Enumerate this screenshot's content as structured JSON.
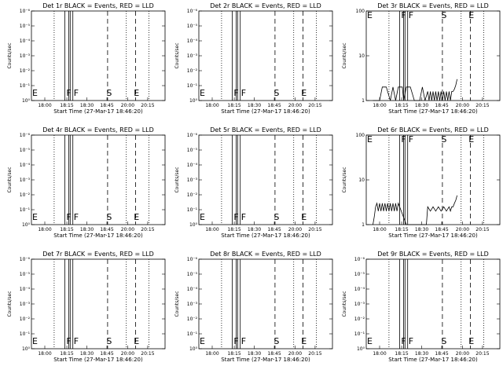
{
  "chart_data": [
    {
      "type": "line",
      "title": "Det 1r BLACK = Events, RED = LLD",
      "xlabel": "Start Time (27-Mar-17 18:46:20)",
      "ylabel": "Counts/sec",
      "yscale": "log",
      "y_tick_labels": [
        "10⁰",
        "10⁻¹",
        "10⁻²",
        "10⁻³",
        "10⁻⁴",
        "10⁻⁵",
        "10⁻⁶"
      ],
      "x_tick_labels": [
        "18:00",
        "18:15",
        "18:30",
        "18:45",
        "20:00",
        "20:15"
      ],
      "markers": [
        "E",
        "F",
        "F",
        "S",
        "E"
      ],
      "series": []
    },
    {
      "type": "line",
      "title": "Det 2r BLACK = Events, RED = LLD",
      "xlabel": "Start Time (27-Mar-17 18:46:20)",
      "ylabel": "Counts/sec",
      "yscale": "log",
      "y_tick_labels": [
        "10⁰",
        "10⁻¹",
        "10⁻²",
        "10⁻³",
        "10⁻⁴",
        "10⁻⁵",
        "10⁻⁶"
      ],
      "x_tick_labels": [
        "18:00",
        "18:15",
        "18:30",
        "18:45",
        "20:00",
        "20:15"
      ],
      "markers": [
        "E",
        "F",
        "F",
        "S",
        "E"
      ],
      "series": []
    },
    {
      "type": "line",
      "title": "Det 3r BLACK = Events, RED = LLD",
      "xlabel": "Start Time (27-Mar-17 18:46:20)",
      "ylabel": "Counts/sec",
      "yscale": "log",
      "y_tick_labels": [
        "1",
        "10",
        "100"
      ],
      "x_tick_labels": [
        "18:00",
        "18:15",
        "18:30",
        "18:45",
        "20:00",
        "20:15"
      ],
      "markers": [
        "E",
        "F",
        "F",
        "S",
        "E"
      ],
      "series": [
        {
          "x": [
            0.05,
            0.08,
            0.1,
            0.12,
            0.15,
            0.18,
            0.2,
            0.22,
            0.24,
            0.27,
            0.28,
            0.3,
            0.33,
            0.36,
            0.4,
            0.42,
            0.44,
            0.46,
            0.47,
            0.48,
            0.49,
            0.5,
            0.51,
            0.52,
            0.53,
            0.54,
            0.55,
            0.56,
            0.57,
            0.58,
            0.59,
            0.6,
            0.61,
            0.62,
            0.63,
            0.64,
            0.65,
            0.66,
            0.67,
            0.68
          ],
          "y": [
            1,
            1,
            1,
            2,
            2,
            1,
            2,
            1,
            2,
            2,
            1,
            2,
            2,
            1,
            1,
            2,
            1,
            1.6,
            1,
            1.6,
            1,
            1.6,
            1,
            1.6,
            1,
            1.6,
            1,
            1.6,
            1,
            1.6,
            1,
            1.6,
            1,
            1.6,
            1,
            1.6,
            1.6,
            1.8,
            2.2,
            3
          ]
        }
      ]
    },
    {
      "type": "line",
      "title": "Det 4r BLACK = Events, RED = LLD",
      "xlabel": "Start Time (27-Mar-17 18:46:20)",
      "ylabel": "Counts/sec",
      "yscale": "log",
      "y_tick_labels": [
        "10⁰",
        "10⁻¹",
        "10⁻²",
        "10⁻³",
        "10⁻⁴",
        "10⁻⁵",
        "10⁻⁶"
      ],
      "x_tick_labels": [
        "18:00",
        "18:15",
        "18:30",
        "18:45",
        "20:00",
        "20:15"
      ],
      "markers": [
        "E",
        "F",
        "F",
        "S",
        "E"
      ],
      "series": []
    },
    {
      "type": "line",
      "title": "Det 5r BLACK = Events, RED = LLD",
      "xlabel": "Start Time (27-Mar-17 18:46:20)",
      "ylabel": "Counts/sec",
      "yscale": "log",
      "y_tick_labels": [
        "10⁰",
        "10⁻¹",
        "10⁻²",
        "10⁻³",
        "10⁻⁴",
        "10⁻⁵",
        "10⁻⁶"
      ],
      "x_tick_labels": [
        "18:00",
        "18:15",
        "18:30",
        "18:45",
        "20:00",
        "20:15"
      ],
      "markers": [
        "E",
        "F",
        "F",
        "S",
        "E"
      ],
      "series": []
    },
    {
      "type": "line",
      "title": "Det 6r BLACK = Events, RED = LLD",
      "xlabel": "Start Time (27-Mar-17 18:46:20)",
      "ylabel": "Counts/sec",
      "yscale": "log",
      "y_tick_labels": [
        "1",
        "10",
        "100"
      ],
      "x_tick_labels": [
        "18:00",
        "18:15",
        "18:30",
        "18:45",
        "20:00",
        "20:15"
      ],
      "markers": [
        "E",
        "F",
        "F",
        "S",
        "E"
      ],
      "series": [
        {
          "x": [
            0.05,
            0.06,
            0.07,
            0.08,
            0.09,
            0.1,
            0.11,
            0.12,
            0.13,
            0.14,
            0.15,
            0.16,
            0.17,
            0.18,
            0.19,
            0.2,
            0.21,
            0.22,
            0.23,
            0.24,
            0.3,
            0.4,
            0.45,
            0.46,
            0.48,
            0.5,
            0.52,
            0.54,
            0.56,
            0.58,
            0.6,
            0.62,
            0.63,
            0.64,
            0.65,
            0.66,
            0.67,
            0.68
          ],
          "y": [
            1,
            1.5,
            2.5,
            3,
            2,
            3,
            2,
            3,
            2,
            3,
            2,
            3,
            2,
            3,
            2,
            3,
            2,
            3,
            2,
            3,
            1,
            1,
            1,
            2.5,
            2,
            2.5,
            2,
            2.5,
            2,
            2.5,
            2,
            2.5,
            2,
            2.5,
            2.5,
            3,
            3.5,
            4.5
          ]
        }
      ]
    },
    {
      "type": "line",
      "title": "Det 7r BLACK = Events, RED = LLD",
      "xlabel": "Start Time (27-Mar-17 18:46:20)",
      "ylabel": "Counts/sec",
      "yscale": "log",
      "y_tick_labels": [
        "10⁰",
        "10⁻¹",
        "10⁻²",
        "10⁻³",
        "10⁻⁴",
        "10⁻⁵",
        "10⁻⁶"
      ],
      "x_tick_labels": [
        "18:00",
        "18:15",
        "18:30",
        "18:45",
        "20:00",
        "20:15"
      ],
      "markers": [
        "E",
        "F",
        "F",
        "S",
        "E"
      ],
      "series": []
    },
    {
      "type": "line",
      "title": "Det 8r BLACK = Events, RED = LLD",
      "xlabel": "Start Time (27-Mar-17 18:46:20)",
      "ylabel": "Counts/sec",
      "yscale": "log",
      "y_tick_labels": [
        "10⁰",
        "10⁻¹",
        "10⁻²",
        "10⁻³",
        "10⁻⁴",
        "10⁻⁵",
        "10⁻⁶"
      ],
      "x_tick_labels": [
        "18:00",
        "18:15",
        "18:30",
        "18:45",
        "20:00",
        "20:15"
      ],
      "markers": [
        "E",
        "F",
        "F",
        "S",
        "E"
      ],
      "series": []
    },
    {
      "type": "line",
      "title": "Det 9r BLACK = Events, RED = LLD",
      "xlabel": "Start Time (27-Mar-17 18:46:20)",
      "ylabel": "Counts/sec",
      "yscale": "log",
      "y_tick_labels": [
        "10⁰",
        "10⁻¹",
        "10⁻²",
        "10⁻³",
        "10⁻⁴",
        "10⁻⁵",
        "10⁻⁶"
      ],
      "x_tick_labels": [
        "18:00",
        "18:15",
        "18:30",
        "18:45",
        "20:00",
        "20:15"
      ],
      "markers": [
        "E",
        "F",
        "F",
        "S",
        "E"
      ],
      "series": []
    }
  ]
}
